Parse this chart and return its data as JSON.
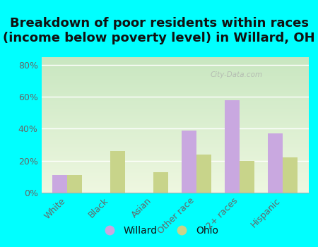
{
  "title": "Breakdown of poor residents within races\n(income below poverty level) in Willard, OH",
  "categories": [
    "White",
    "Black",
    "Asian",
    "Other race",
    "2+ races",
    "Hispanic"
  ],
  "willard_values": [
    0.11,
    0.0,
    0.0,
    0.39,
    0.58,
    0.37
  ],
  "ohio_values": [
    0.11,
    0.26,
    0.13,
    0.24,
    0.2,
    0.22
  ],
  "willard_color": "#c9a8e0",
  "ohio_color": "#c8d48a",
  "bar_width": 0.35,
  "ylim": [
    0,
    0.85
  ],
  "yticks": [
    0.0,
    0.2,
    0.4,
    0.6,
    0.8
  ],
  "yticklabels": [
    "0%",
    "20%",
    "40%",
    "60%",
    "80%"
  ],
  "bg_color_top": "#c8e6c0",
  "bg_color_bottom": "#eef7e0",
  "title_fontsize": 13,
  "tick_fontsize": 9,
  "legend_fontsize": 10,
  "outer_bg": "#00ffff",
  "watermark": "City-Data.com"
}
